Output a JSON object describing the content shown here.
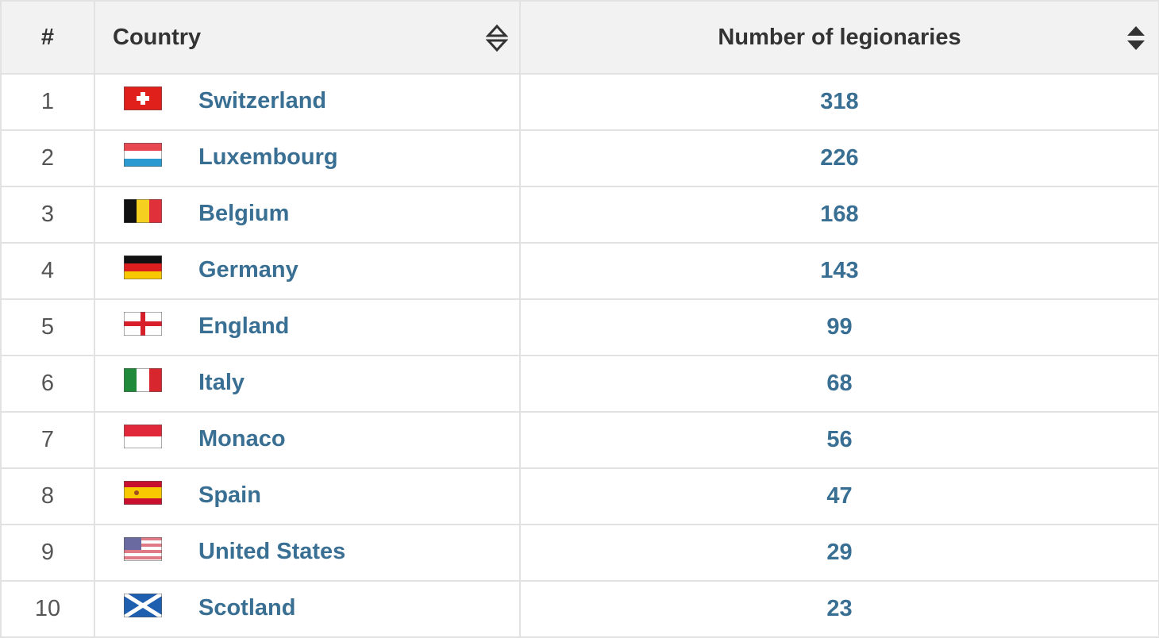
{
  "table": {
    "headers": {
      "rank": "#",
      "country": "Country",
      "count": "Number of legionaries"
    },
    "rows": [
      {
        "rank": "1",
        "country": "Switzerland",
        "flag": "switzerland-flag-icon",
        "count": "318"
      },
      {
        "rank": "2",
        "country": "Luxembourg",
        "flag": "luxembourg-flag-icon",
        "count": "226"
      },
      {
        "rank": "3",
        "country": "Belgium",
        "flag": "belgium-flag-icon",
        "count": "168"
      },
      {
        "rank": "4",
        "country": "Germany",
        "flag": "germany-flag-icon",
        "count": "143"
      },
      {
        "rank": "5",
        "country": "England",
        "flag": "england-flag-icon",
        "count": "99"
      },
      {
        "rank": "6",
        "country": "Italy",
        "flag": "italy-flag-icon",
        "count": "68"
      },
      {
        "rank": "7",
        "country": "Monaco",
        "flag": "monaco-flag-icon",
        "count": "56"
      },
      {
        "rank": "8",
        "country": "Spain",
        "flag": "spain-flag-icon",
        "count": "47"
      },
      {
        "rank": "9",
        "country": "United States",
        "flag": "united-states-flag-icon",
        "count": "29"
      },
      {
        "rank": "10",
        "country": "Scotland",
        "flag": "scotland-flag-icon",
        "count": "23"
      }
    ]
  },
  "colors": {
    "link": "#3a6f94",
    "header_bg": "#f2f2f2",
    "border": "#e2e2e2"
  }
}
